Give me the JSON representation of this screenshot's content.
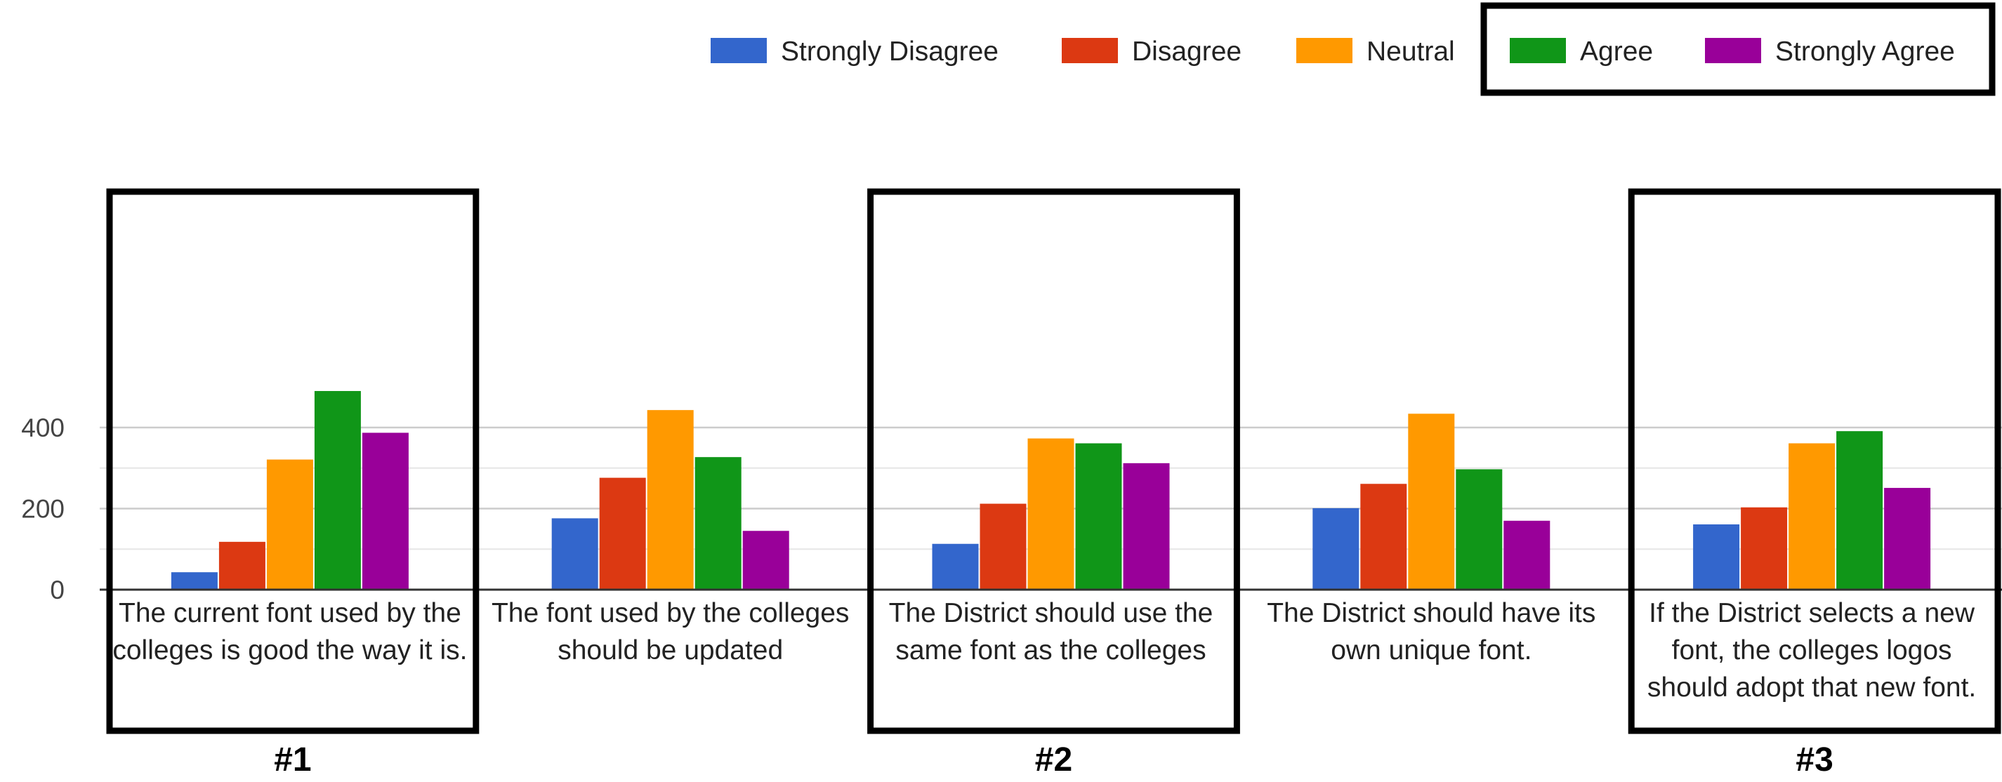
{
  "colors": {
    "background": "#ffffff",
    "gridline": "#cccccc",
    "minor_gridline": "#e6e6e6",
    "baseline": "#333333",
    "highlight_box": "#000000",
    "tick_text": "#444444",
    "label_text": "#222222"
  },
  "chart_data": {
    "type": "bar",
    "title": "",
    "xlabel": "",
    "ylabel": "",
    "ylim": [
      0,
      490
    ],
    "yticks": [
      0,
      200,
      400
    ],
    "grid": true,
    "legend_position": "top-right",
    "categories": [
      "The current font used by the colleges is good the way it is.",
      "The font used by the colleges should be updated",
      "The District should use the same font as the colleges",
      "The District should have its own unique font.",
      "If the District selects a new font, the colleges logos should adopt that new font."
    ],
    "series": [
      {
        "name": "Strongly Disagree",
        "color": "#3366cc",
        "values": [
          43,
          176,
          113,
          201,
          161
        ]
      },
      {
        "name": "Disagree",
        "color": "#dc3912",
        "values": [
          118,
          276,
          212,
          261,
          203
        ]
      },
      {
        "name": "Neutral",
        "color": "#ff9900",
        "values": [
          321,
          443,
          373,
          434,
          361
        ]
      },
      {
        "name": "Agree",
        "color": "#109618",
        "values": [
          490,
          327,
          361,
          297,
          391
        ]
      },
      {
        "name": "Strongly Agree",
        "color": "#990099",
        "values": [
          387,
          145,
          312,
          170,
          251
        ]
      }
    ],
    "highlighted_groups": [
      {
        "category_index": 0,
        "label": "#1"
      },
      {
        "category_index": 2,
        "label": "#2"
      },
      {
        "category_index": 4,
        "label": "#3"
      }
    ],
    "highlighted_legend_entries": [
      "Agree",
      "Strongly Agree"
    ]
  }
}
